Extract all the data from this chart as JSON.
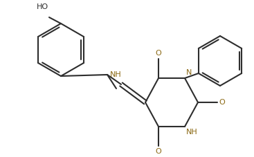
{
  "background_color": "#ffffff",
  "line_color": "#2d2d2d",
  "heteroatom_color": "#8B6914",
  "line_width": 1.5,
  "figsize": [
    3.67,
    2.27
  ],
  "dpi": 100,
  "xlim": [
    0,
    367
  ],
  "ylim": [
    0,
    227
  ]
}
